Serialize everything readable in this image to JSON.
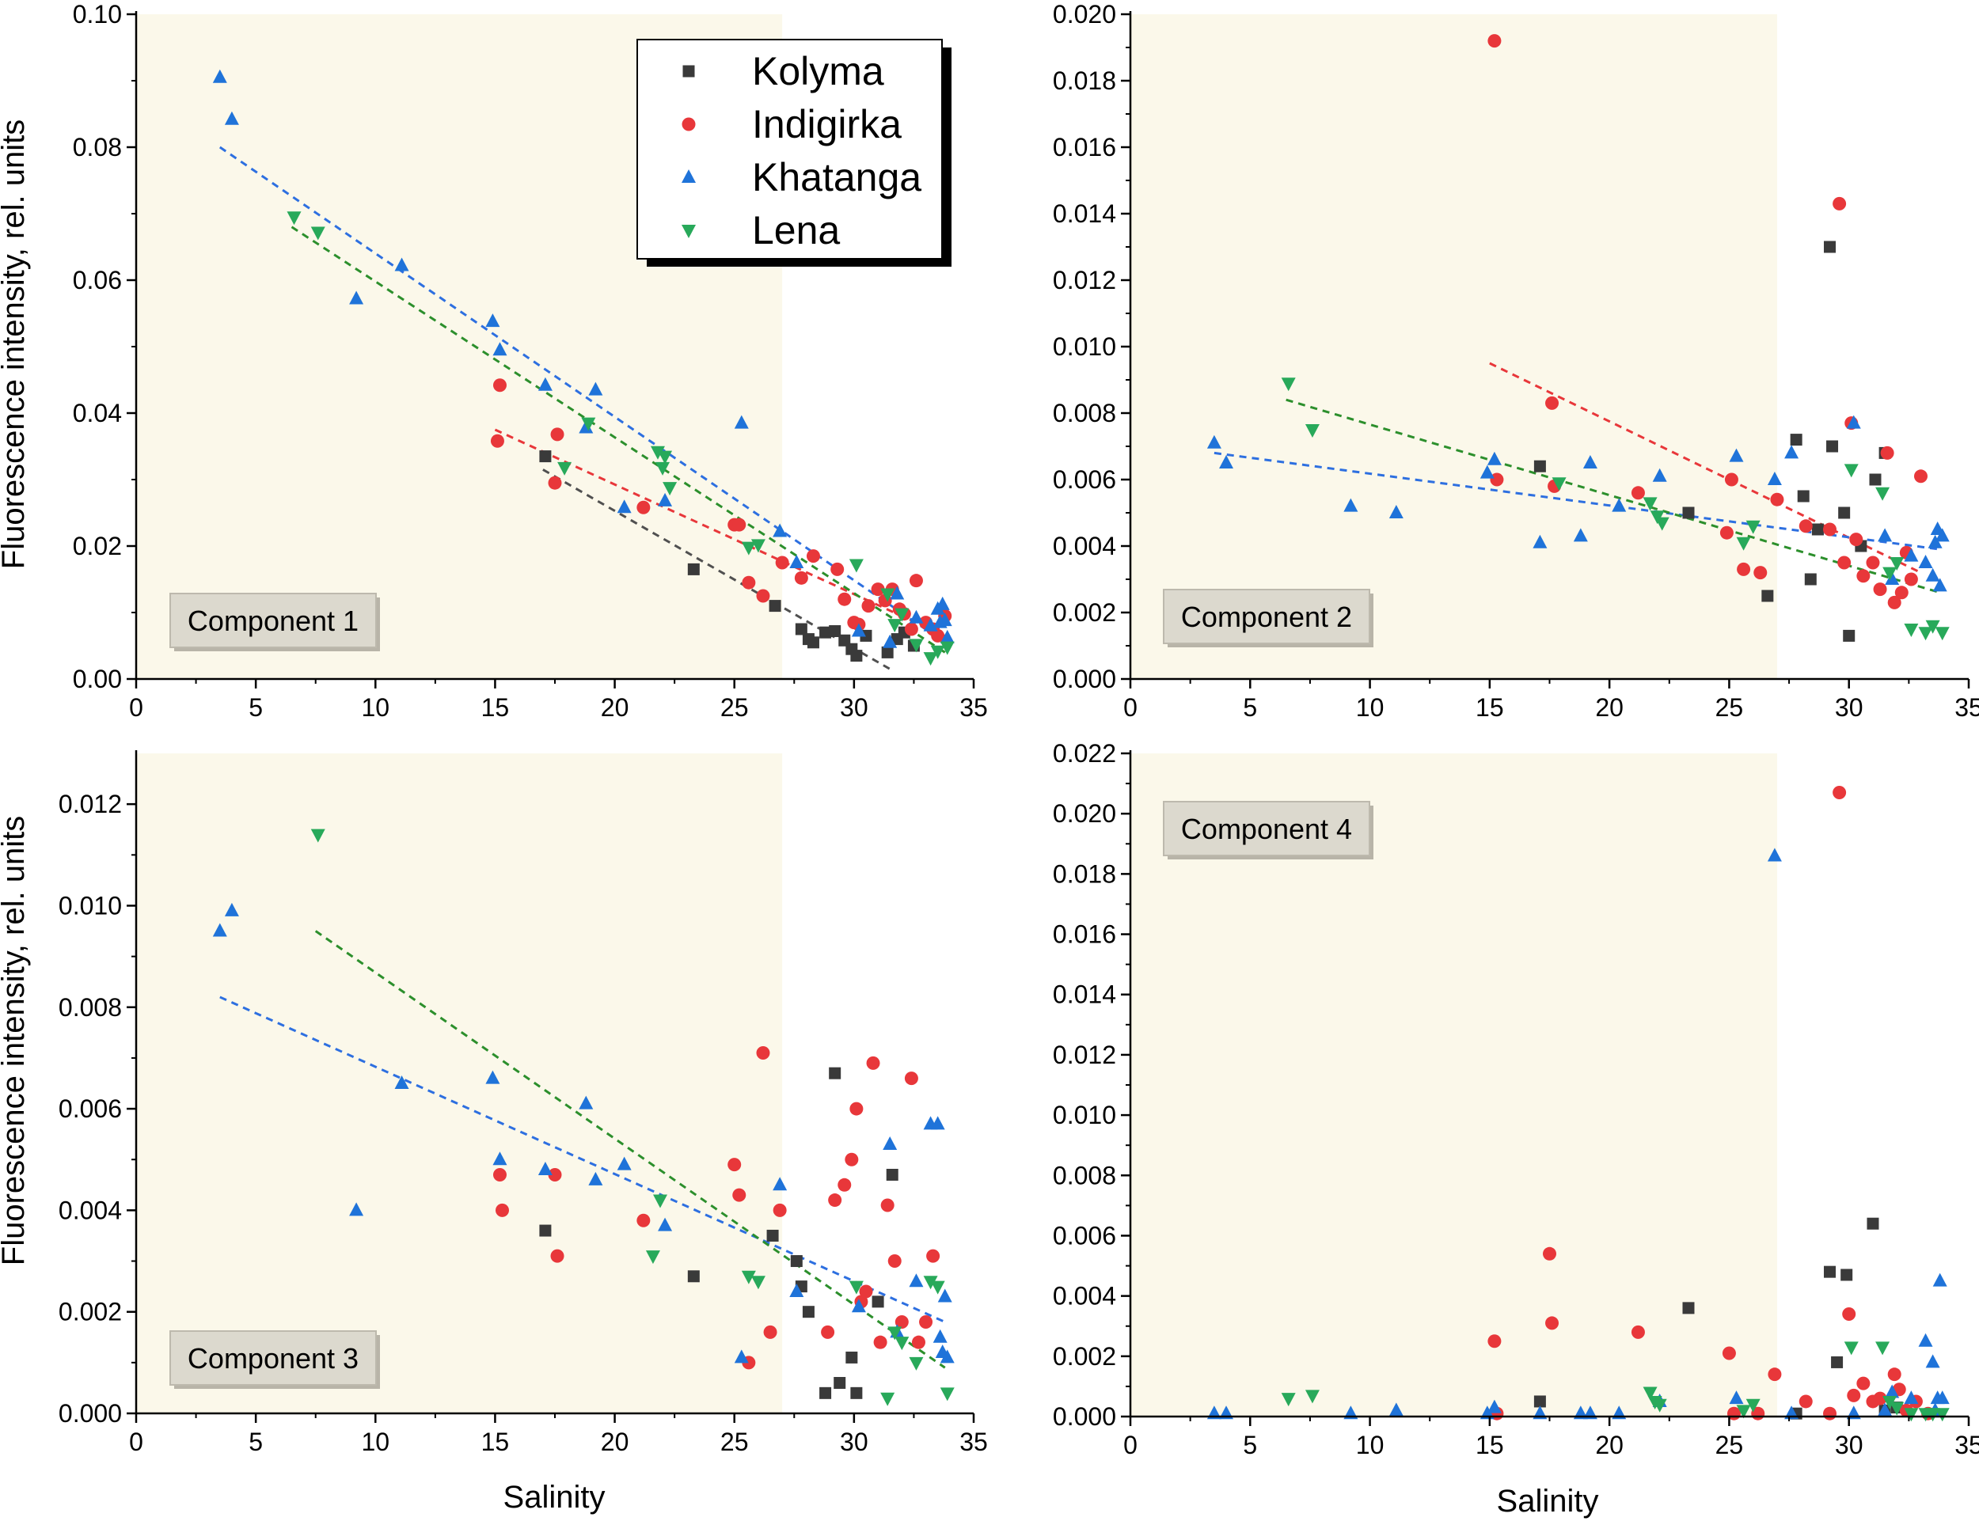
{
  "figure": {
    "ylabel_left": "Fluorescence intensity, rel. units",
    "xlabel": "Salinity",
    "legend": [
      {
        "name": "Kolyma",
        "marker": "square",
        "color": "#3a3a3a"
      },
      {
        "name": "Indigirka",
        "marker": "circle",
        "color": "#e8373a"
      },
      {
        "name": "Khatanga",
        "marker": "triangle-up",
        "color": "#1f73d9"
      },
      {
        "name": "Lena",
        "marker": "triangle-down",
        "color": "#28a95a"
      }
    ],
    "shade_color": "#fbf8ea",
    "trend_colors": {
      "Kolyma": "#505050",
      "Indigirka": "#e8373a",
      "Khatanga": "#2d6fe0",
      "Lena": "#2c8f2c"
    }
  },
  "chart_data": [
    {
      "type": "scatter",
      "title": "Component 1",
      "xlabel": "",
      "ylabel": "Fluorescence intensity, rel. units",
      "xlim": [
        0,
        35
      ],
      "ylim": [
        0,
        0.1
      ],
      "xticks": [
        0,
        5,
        10,
        15,
        20,
        25,
        30,
        35
      ],
      "yticks": [
        0.0,
        0.02,
        0.04,
        0.06,
        0.08,
        0.1
      ],
      "ytick_labels": [
        "0.00",
        "0.02",
        "0.04",
        "0.06",
        "0.08",
        "0.10"
      ],
      "shade_x": [
        0,
        27
      ],
      "series": [
        {
          "name": "Kolyma",
          "x": [
            17.1,
            23.3,
            26.7,
            27.8,
            28.1,
            28.3,
            28.8,
            29.2,
            29.6,
            29.9,
            30.1,
            30.5,
            31.4,
            31.8,
            32.1,
            32.5
          ],
          "y": [
            0.0335,
            0.0165,
            0.011,
            0.0075,
            0.006,
            0.0055,
            0.007,
            0.0072,
            0.0058,
            0.0045,
            0.0035,
            0.0065,
            0.004,
            0.006,
            0.007,
            0.005
          ]
        },
        {
          "name": "Indigirka",
          "x": [
            15.2,
            15.1,
            17.6,
            17.5,
            21.2,
            25.0,
            25.2,
            25.6,
            26.2,
            27.0,
            27.8,
            28.3,
            29.3,
            29.6,
            30.0,
            30.2,
            30.6,
            31.0,
            31.3,
            31.6,
            31.9,
            32.1,
            32.4,
            32.6,
            33.0,
            33.3,
            33.5,
            33.8
          ],
          "y": [
            0.0442,
            0.0358,
            0.0368,
            0.0295,
            0.0258,
            0.0232,
            0.0232,
            0.0145,
            0.0125,
            0.0175,
            0.0152,
            0.0185,
            0.0165,
            0.012,
            0.0085,
            0.0082,
            0.011,
            0.0135,
            0.0118,
            0.0135,
            0.0105,
            0.0098,
            0.0075,
            0.0148,
            0.0085,
            0.0075,
            0.0065,
            0.0095
          ]
        },
        {
          "name": "Khatanga",
          "x": [
            3.5,
            4.0,
            9.2,
            11.1,
            14.9,
            15.2,
            17.1,
            18.8,
            19.2,
            20.4,
            22.1,
            25.3,
            26.9,
            27.6,
            30.2,
            31.5,
            31.8,
            32.6,
            33.2,
            33.5,
            33.6,
            33.7,
            33.8,
            33.9
          ],
          "y": [
            0.0905,
            0.0842,
            0.0572,
            0.0622,
            0.0538,
            0.0495,
            0.0442,
            0.0378,
            0.0435,
            0.0258,
            0.0268,
            0.0385,
            0.0222,
            0.0175,
            0.0072,
            0.0055,
            0.0128,
            0.0092,
            0.008,
            0.0105,
            0.0085,
            0.0112,
            0.0088,
            0.0062
          ]
        },
        {
          "name": "Lena",
          "x": [
            6.6,
            7.6,
            17.9,
            18.9,
            21.8,
            22.0,
            22.1,
            22.3,
            25.6,
            26.0,
            30.1,
            31.4,
            31.7,
            32.0,
            32.6,
            33.2,
            33.5,
            33.9
          ],
          "y": [
            0.0695,
            0.0672,
            0.0318,
            0.0385,
            0.0342,
            0.0318,
            0.0335,
            0.0288,
            0.0198,
            0.0202,
            0.0172,
            0.0128,
            0.0082,
            0.0098,
            0.0052,
            0.0032,
            0.0042,
            0.0048
          ]
        }
      ],
      "trendlines": [
        {
          "name": "Kolyma",
          "x": [
            17.0,
            31.5
          ],
          "y": [
            0.0315,
            0.0015
          ]
        },
        {
          "name": "Indigirka",
          "x": [
            15.0,
            33.8
          ],
          "y": [
            0.0375,
            0.0065
          ]
        },
        {
          "name": "Khatanga",
          "x": [
            3.5,
            33.8
          ],
          "y": [
            0.08,
            0.0055
          ]
        },
        {
          "name": "Lena",
          "x": [
            6.5,
            33.8
          ],
          "y": [
            0.068,
            0.004
          ]
        }
      ]
    },
    {
      "type": "scatter",
      "title": "Component 2",
      "xlabel": "",
      "ylabel": "",
      "xlim": [
        0,
        35
      ],
      "ylim": [
        0,
        0.02
      ],
      "xticks": [
        0,
        5,
        10,
        15,
        20,
        25,
        30,
        35
      ],
      "yticks": [
        0.0,
        0.002,
        0.004,
        0.006,
        0.008,
        0.01,
        0.012,
        0.014,
        0.016,
        0.018,
        0.02
      ],
      "ytick_labels": [
        "0.000",
        "0.002",
        "0.004",
        "0.006",
        "0.008",
        "0.010",
        "0.012",
        "0.014",
        "0.016",
        "0.018",
        "0.020"
      ],
      "shade_x": [
        0,
        27
      ],
      "series": [
        {
          "name": "Kolyma",
          "x": [
            17.1,
            23.3,
            26.6,
            27.8,
            28.1,
            28.4,
            28.7,
            29.2,
            29.3,
            29.8,
            30.0,
            30.5,
            31.1,
            31.5
          ],
          "y": [
            0.0064,
            0.005,
            0.0025,
            0.0072,
            0.0055,
            0.003,
            0.0045,
            0.013,
            0.007,
            0.005,
            0.0013,
            0.004,
            0.006,
            0.0068
          ]
        },
        {
          "name": "Indigirka",
          "x": [
            15.2,
            15.3,
            17.6,
            17.7,
            21.2,
            24.9,
            25.1,
            25.6,
            26.3,
            27.0,
            28.2,
            29.2,
            29.6,
            29.8,
            30.1,
            30.3,
            30.6,
            31.0,
            31.3,
            31.6,
            31.9,
            32.2,
            32.4,
            32.6,
            33.0
          ],
          "y": [
            0.0192,
            0.006,
            0.0083,
            0.0058,
            0.0056,
            0.0044,
            0.006,
            0.0033,
            0.0032,
            0.0054,
            0.0046,
            0.0045,
            0.0143,
            0.0035,
            0.0077,
            0.0042,
            0.0031,
            0.0035,
            0.0027,
            0.0068,
            0.0023,
            0.0026,
            0.0038,
            0.003,
            0.0061
          ]
        },
        {
          "name": "Khatanga",
          "x": [
            3.5,
            4.0,
            9.2,
            11.1,
            14.9,
            15.2,
            17.1,
            18.8,
            19.2,
            20.4,
            22.1,
            25.3,
            26.9,
            27.6,
            30.2,
            31.5,
            31.8,
            32.6,
            33.2,
            33.5,
            33.6,
            33.7,
            33.8,
            33.9
          ],
          "y": [
            0.0071,
            0.0065,
            0.0052,
            0.005,
            0.0062,
            0.0066,
            0.0041,
            0.0043,
            0.0065,
            0.0052,
            0.0061,
            0.0067,
            0.006,
            0.0068,
            0.0077,
            0.0043,
            0.003,
            0.0037,
            0.0035,
            0.0031,
            0.0041,
            0.0045,
            0.0028,
            0.0043
          ]
        },
        {
          "name": "Lena",
          "x": [
            6.6,
            7.6,
            17.9,
            21.7,
            22.0,
            22.2,
            25.6,
            26.0,
            30.1,
            31.4,
            31.7,
            32.0,
            32.6,
            33.2,
            33.5,
            33.9
          ],
          "y": [
            0.0089,
            0.0075,
            0.0059,
            0.0053,
            0.0049,
            0.0047,
            0.0041,
            0.0046,
            0.0063,
            0.0056,
            0.0032,
            0.0035,
            0.0015,
            0.0014,
            0.0016,
            0.0014
          ]
        }
      ],
      "trendlines": [
        {
          "name": "Indigirka",
          "x": [
            15.0,
            33.0
          ],
          "y": [
            0.0095,
            0.0032
          ]
        },
        {
          "name": "Khatanga",
          "x": [
            3.5,
            33.8
          ],
          "y": [
            0.0068,
            0.0039
          ]
        },
        {
          "name": "Lena",
          "x": [
            6.5,
            33.8
          ],
          "y": [
            0.0084,
            0.0026
          ]
        }
      ]
    },
    {
      "type": "scatter",
      "title": "Component 3",
      "xlabel": "Salinity",
      "ylabel": "Fluorescence intensity, rel. units",
      "xlim": [
        0,
        35
      ],
      "ylim": [
        0,
        0.013
      ],
      "xticks": [
        0,
        5,
        10,
        15,
        20,
        25,
        30,
        35
      ],
      "yticks": [
        0.0,
        0.002,
        0.004,
        0.006,
        0.008,
        0.01,
        0.012
      ],
      "ytick_labels": [
        "0.000",
        "0.002",
        "0.004",
        "0.006",
        "0.008",
        "0.010",
        "0.012"
      ],
      "shade_x": [
        0,
        27
      ],
      "series": [
        {
          "name": "Kolyma",
          "x": [
            17.1,
            23.3,
            26.6,
            27.6,
            27.8,
            28.1,
            28.8,
            29.2,
            29.4,
            29.9,
            30.1,
            31.0,
            31.6
          ],
          "y": [
            0.0036,
            0.0027,
            0.0035,
            0.003,
            0.0025,
            0.002,
            0.0004,
            0.0067,
            0.0006,
            0.0011,
            0.0004,
            0.0022,
            0.0047
          ]
        },
        {
          "name": "Indigirka",
          "x": [
            15.2,
            15.3,
            17.5,
            17.6,
            21.2,
            25.0,
            25.2,
            25.6,
            26.2,
            26.5,
            26.9,
            28.9,
            29.2,
            29.6,
            29.9,
            30.1,
            30.3,
            30.5,
            30.8,
            31.1,
            31.4,
            31.7,
            32.0,
            32.4,
            32.7,
            33.0,
            33.3
          ],
          "y": [
            0.0047,
            0.004,
            0.0047,
            0.0031,
            0.0038,
            0.0049,
            0.0043,
            0.001,
            0.0071,
            0.0016,
            0.004,
            0.0016,
            0.0042,
            0.0045,
            0.005,
            0.006,
            0.0022,
            0.0024,
            0.0069,
            0.0014,
            0.0041,
            0.003,
            0.0018,
            0.0066,
            0.0014,
            0.0018,
            0.0031
          ]
        },
        {
          "name": "Khatanga",
          "x": [
            3.5,
            4.0,
            9.2,
            11.1,
            14.9,
            15.2,
            17.1,
            18.8,
            19.2,
            20.4,
            22.1,
            25.3,
            26.9,
            27.6,
            30.2,
            31.5,
            31.8,
            32.6,
            33.2,
            33.5,
            33.6,
            33.7,
            33.8,
            33.9
          ],
          "y": [
            0.0095,
            0.0099,
            0.004,
            0.0065,
            0.0066,
            0.005,
            0.0048,
            0.0061,
            0.0046,
            0.0049,
            0.0037,
            0.0011,
            0.0045,
            0.0024,
            0.0021,
            0.0053,
            0.0016,
            0.0026,
            0.0057,
            0.0057,
            0.0015,
            0.0012,
            0.0023,
            0.0011
          ]
        },
        {
          "name": "Lena",
          "x": [
            7.6,
            21.6,
            21.9,
            25.6,
            26.0,
            30.1,
            31.4,
            31.7,
            32.0,
            32.6,
            33.2,
            33.5,
            33.9
          ],
          "y": [
            0.0114,
            0.0031,
            0.0042,
            0.0027,
            0.0026,
            0.0025,
            0.0003,
            0.0016,
            0.0014,
            0.001,
            0.0026,
            0.0025,
            0.0004
          ]
        }
      ],
      "trendlines": [
        {
          "name": "Khatanga",
          "x": [
            3.5,
            33.8
          ],
          "y": [
            0.0082,
            0.0018
          ]
        },
        {
          "name": "Lena",
          "x": [
            7.5,
            33.8
          ],
          "y": [
            0.0095,
            0.0009
          ]
        }
      ]
    },
    {
      "type": "scatter",
      "title": "Component 4",
      "xlabel": "Salinity",
      "ylabel": "",
      "xlim": [
        0,
        35
      ],
      "ylim": [
        0,
        0.022
      ],
      "xticks": [
        0,
        5,
        10,
        15,
        20,
        25,
        30,
        35
      ],
      "yticks": [
        0.0,
        0.002,
        0.004,
        0.006,
        0.008,
        0.01,
        0.012,
        0.014,
        0.016,
        0.018,
        0.02,
        0.022
      ],
      "ytick_labels": [
        "0.000",
        "0.002",
        "0.004",
        "0.006",
        "0.008",
        "0.010",
        "0.012",
        "0.014",
        "0.016",
        "0.018",
        "0.020",
        "0.022"
      ],
      "shade_x": [
        0,
        27
      ],
      "series": [
        {
          "name": "Kolyma",
          "x": [
            17.1,
            23.3,
            27.8,
            29.2,
            29.5,
            29.9,
            31.0,
            31.5,
            32.0
          ],
          "y": [
            0.0005,
            0.0036,
            0.0001,
            0.0048,
            0.0018,
            0.0047,
            0.0064,
            0.0002,
            0.0003
          ]
        },
        {
          "name": "Indigirka",
          "x": [
            15.2,
            15.3,
            17.5,
            17.6,
            21.2,
            25.0,
            25.2,
            26.2,
            26.9,
            28.2,
            29.2,
            29.6,
            30.0,
            30.2,
            30.6,
            31.0,
            31.3,
            31.9,
            32.1,
            32.4,
            32.8,
            33.3
          ],
          "y": [
            0.0025,
            0.0001,
            0.0054,
            0.0031,
            0.0028,
            0.0021,
            0.0001,
            0.0001,
            0.0014,
            0.0005,
            0.0001,
            0.0207,
            0.0034,
            0.0007,
            0.0011,
            0.0005,
            0.0006,
            0.0014,
            0.0009,
            0.0002,
            0.0005,
            0.0001
          ]
        },
        {
          "name": "Khatanga",
          "x": [
            3.5,
            4.0,
            9.2,
            11.1,
            14.9,
            15.2,
            17.1,
            18.8,
            19.2,
            20.4,
            22.1,
            25.3,
            26.9,
            27.6,
            30.2,
            31.5,
            31.8,
            32.6,
            33.2,
            33.5,
            33.6,
            33.7,
            33.8,
            33.9
          ],
          "y": [
            0.0001,
            0.0001,
            0.0001,
            0.0002,
            0.0001,
            0.0003,
            0.0001,
            0.0001,
            0.0001,
            0.0001,
            0.0005,
            0.0006,
            0.0186,
            0.0001,
            0.0001,
            0.0002,
            0.0008,
            0.0006,
            0.0025,
            0.0018,
            0.0002,
            0.0006,
            0.0045,
            0.0006
          ]
        },
        {
          "name": "Lena",
          "x": [
            6.6,
            7.6,
            21.7,
            21.9,
            22.1,
            25.6,
            26.0,
            30.1,
            31.4,
            31.7,
            32.0,
            32.6,
            33.2,
            33.5,
            33.9
          ],
          "y": [
            0.0006,
            0.0007,
            0.0008,
            0.0005,
            0.0004,
            0.0002,
            0.0004,
            0.0023,
            0.0023,
            0.0005,
            0.0003,
            0.0001,
            0.0001,
            0.0001,
            0.0001
          ]
        }
      ],
      "trendlines": []
    }
  ]
}
